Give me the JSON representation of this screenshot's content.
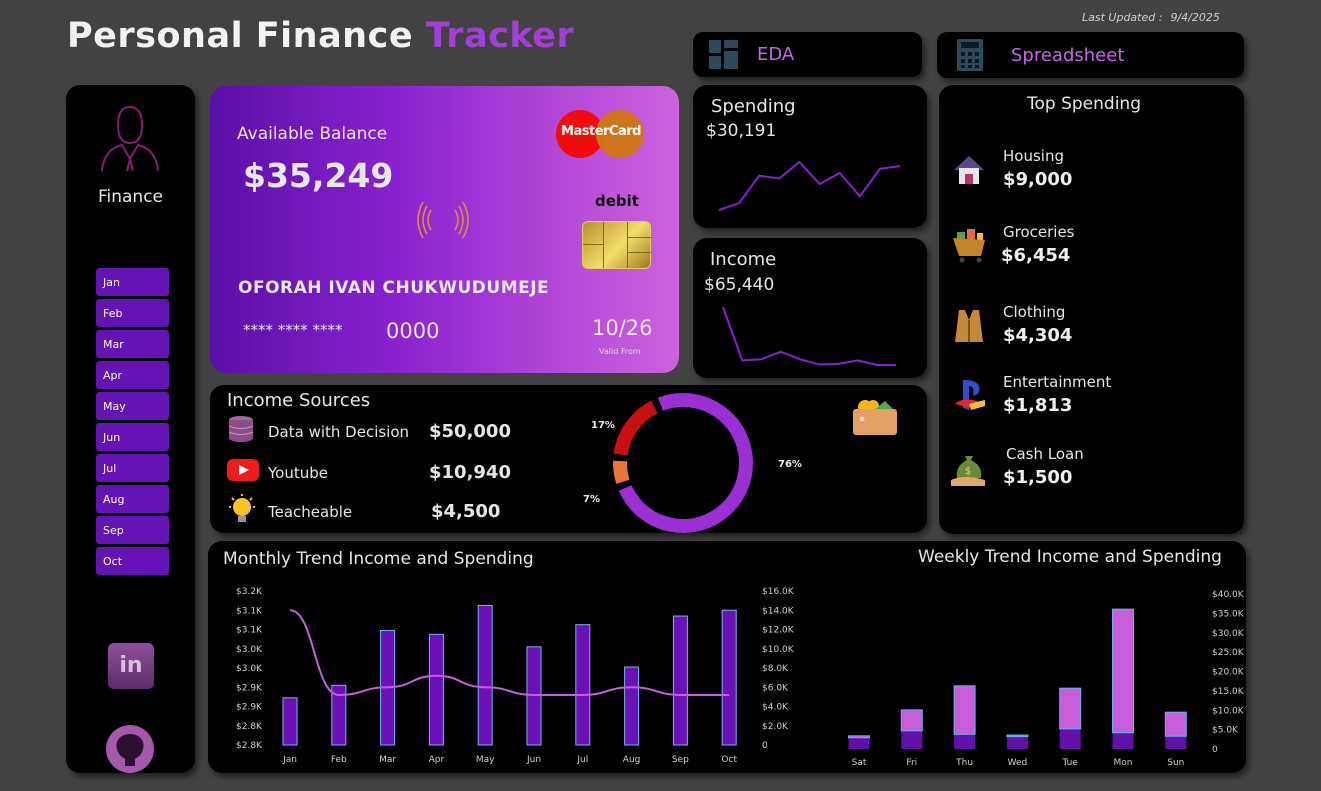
{
  "header": {
    "title_main": "Personal Finance",
    "title_accent": "Tracker",
    "last_updated_label": "Last Updated :",
    "last_updated_value": "9/4/2025"
  },
  "nav": {
    "eda": "EDA",
    "spreadsheet": "Spreadsheet"
  },
  "sidebar": {
    "profile_label": "Finance",
    "months": [
      "Jan",
      "Feb",
      "Mar",
      "Apr",
      "May",
      "Jun",
      "Jul",
      "Aug",
      "Sep",
      "Oct"
    ],
    "icons": [
      "linkedin-icon",
      "github-icon"
    ]
  },
  "card": {
    "balance_label": "Available Balance",
    "balance": "$35,249",
    "brand": "MasterCard",
    "type": "debit",
    "holder": "OFORAH IVAN CHUKWUDUMEJE",
    "number_mask": "**** **** ****",
    "number_last": "0000",
    "date": "10/26",
    "date_label": "Valid From"
  },
  "spending": {
    "label": "Spending",
    "value": "$30,191",
    "trend": [
      1,
      6,
      26,
      24,
      36,
      20,
      28,
      11,
      31,
      33
    ]
  },
  "income": {
    "label": "Income",
    "value": "$65,440",
    "trend": [
      100,
      8,
      10,
      23,
      10,
      1,
      2,
      8,
      0,
      0
    ]
  },
  "income_sources": {
    "title": "Income Sources",
    "items": [
      {
        "name": "Data with Decision",
        "value": "$50,000",
        "icon": "database-icon"
      },
      {
        "name": "Youtube",
        "value": "$10,940",
        "icon": "youtube-icon"
      },
      {
        "name": "Teacheable",
        "value": "$4,500",
        "icon": "lightbulb-icon"
      }
    ],
    "donut": [
      {
        "label": "76%",
        "value": 76,
        "color": "#9b2fd6"
      },
      {
        "label": "7%",
        "value": 7,
        "color": "#e8763a"
      },
      {
        "label": "17%",
        "value": 17,
        "color": "#c80f12"
      }
    ]
  },
  "top_spending": {
    "title_a": "Top",
    "title_b": "Spending",
    "items": [
      {
        "name": "Housing",
        "value": "$9,000",
        "icon": "house-icon"
      },
      {
        "name": "Groceries",
        "value": "$6,454",
        "icon": "shopping-cart-icon"
      },
      {
        "name": "Clothing",
        "value": "$4,304",
        "icon": "vest-icon"
      },
      {
        "name": "Entertainment",
        "value": "$1,813",
        "icon": "playstation-icon"
      },
      {
        "name": "Cash Loan",
        "value": "$1,500",
        "icon": "money-bag-icon"
      }
    ]
  },
  "chart_data": [
    {
      "type": "bar",
      "title": "Monthly Trend Income and Spending",
      "categories": [
        "Jan",
        "Feb",
        "Mar",
        "Apr",
        "May",
        "Jun",
        "Jul",
        "Aug",
        "Sep",
        "Oct"
      ],
      "series": [
        {
          "type": "bar",
          "axis": "right",
          "values": [
            4900,
            6200,
            11900,
            11500,
            14500,
            10200,
            12500,
            8100,
            13400,
            14000
          ],
          "color": "#6a12b8"
        },
        {
          "type": "line",
          "axis": "left",
          "values": [
            3150,
            2930,
            2950,
            2980,
            2950,
            2930,
            2930,
            2950,
            2930,
            2930
          ],
          "color": "#c75ee0"
        }
      ],
      "left_ticks": [
        "$2.8K",
        "$2.8K",
        "$2.9K",
        "$2.9K",
        "$3.0K",
        "$3.0K",
        "$3.1K",
        "$3.1K",
        "$3.2K"
      ],
      "left_ylim": [
        2800,
        3200
      ],
      "right_ticks": [
        "0",
        "$2.0K",
        "$4.0K",
        "$6.0K",
        "$8.0K",
        "$10.0K",
        "$12.0K",
        "$14.0K",
        "$16.0K"
      ],
      "right_ylim": [
        0,
        16000
      ]
    },
    {
      "type": "bar",
      "stacked": true,
      "title": "Weekly Trend Income and Spending",
      "categories": [
        "Sat",
        "Fri",
        "Thu",
        "Wed",
        "Tue",
        "Mon",
        "Sun"
      ],
      "series": [
        {
          "values": [
            2900,
            4700,
            3800,
            3200,
            5200,
            4200,
            3300
          ],
          "color": "#6210a8"
        },
        {
          "values": [
            500,
            5400,
            12500,
            400,
            10500,
            31900,
            6200
          ],
          "color": "#c85ddc"
        }
      ],
      "ticks": [
        "0",
        "$5.0K",
        "$10.0K",
        "$15.0K",
        "$20.0K",
        "$25.0K",
        "$30.0K",
        "$35.0K",
        "$40.0K"
      ],
      "ylim": [
        0,
        40000
      ]
    }
  ]
}
